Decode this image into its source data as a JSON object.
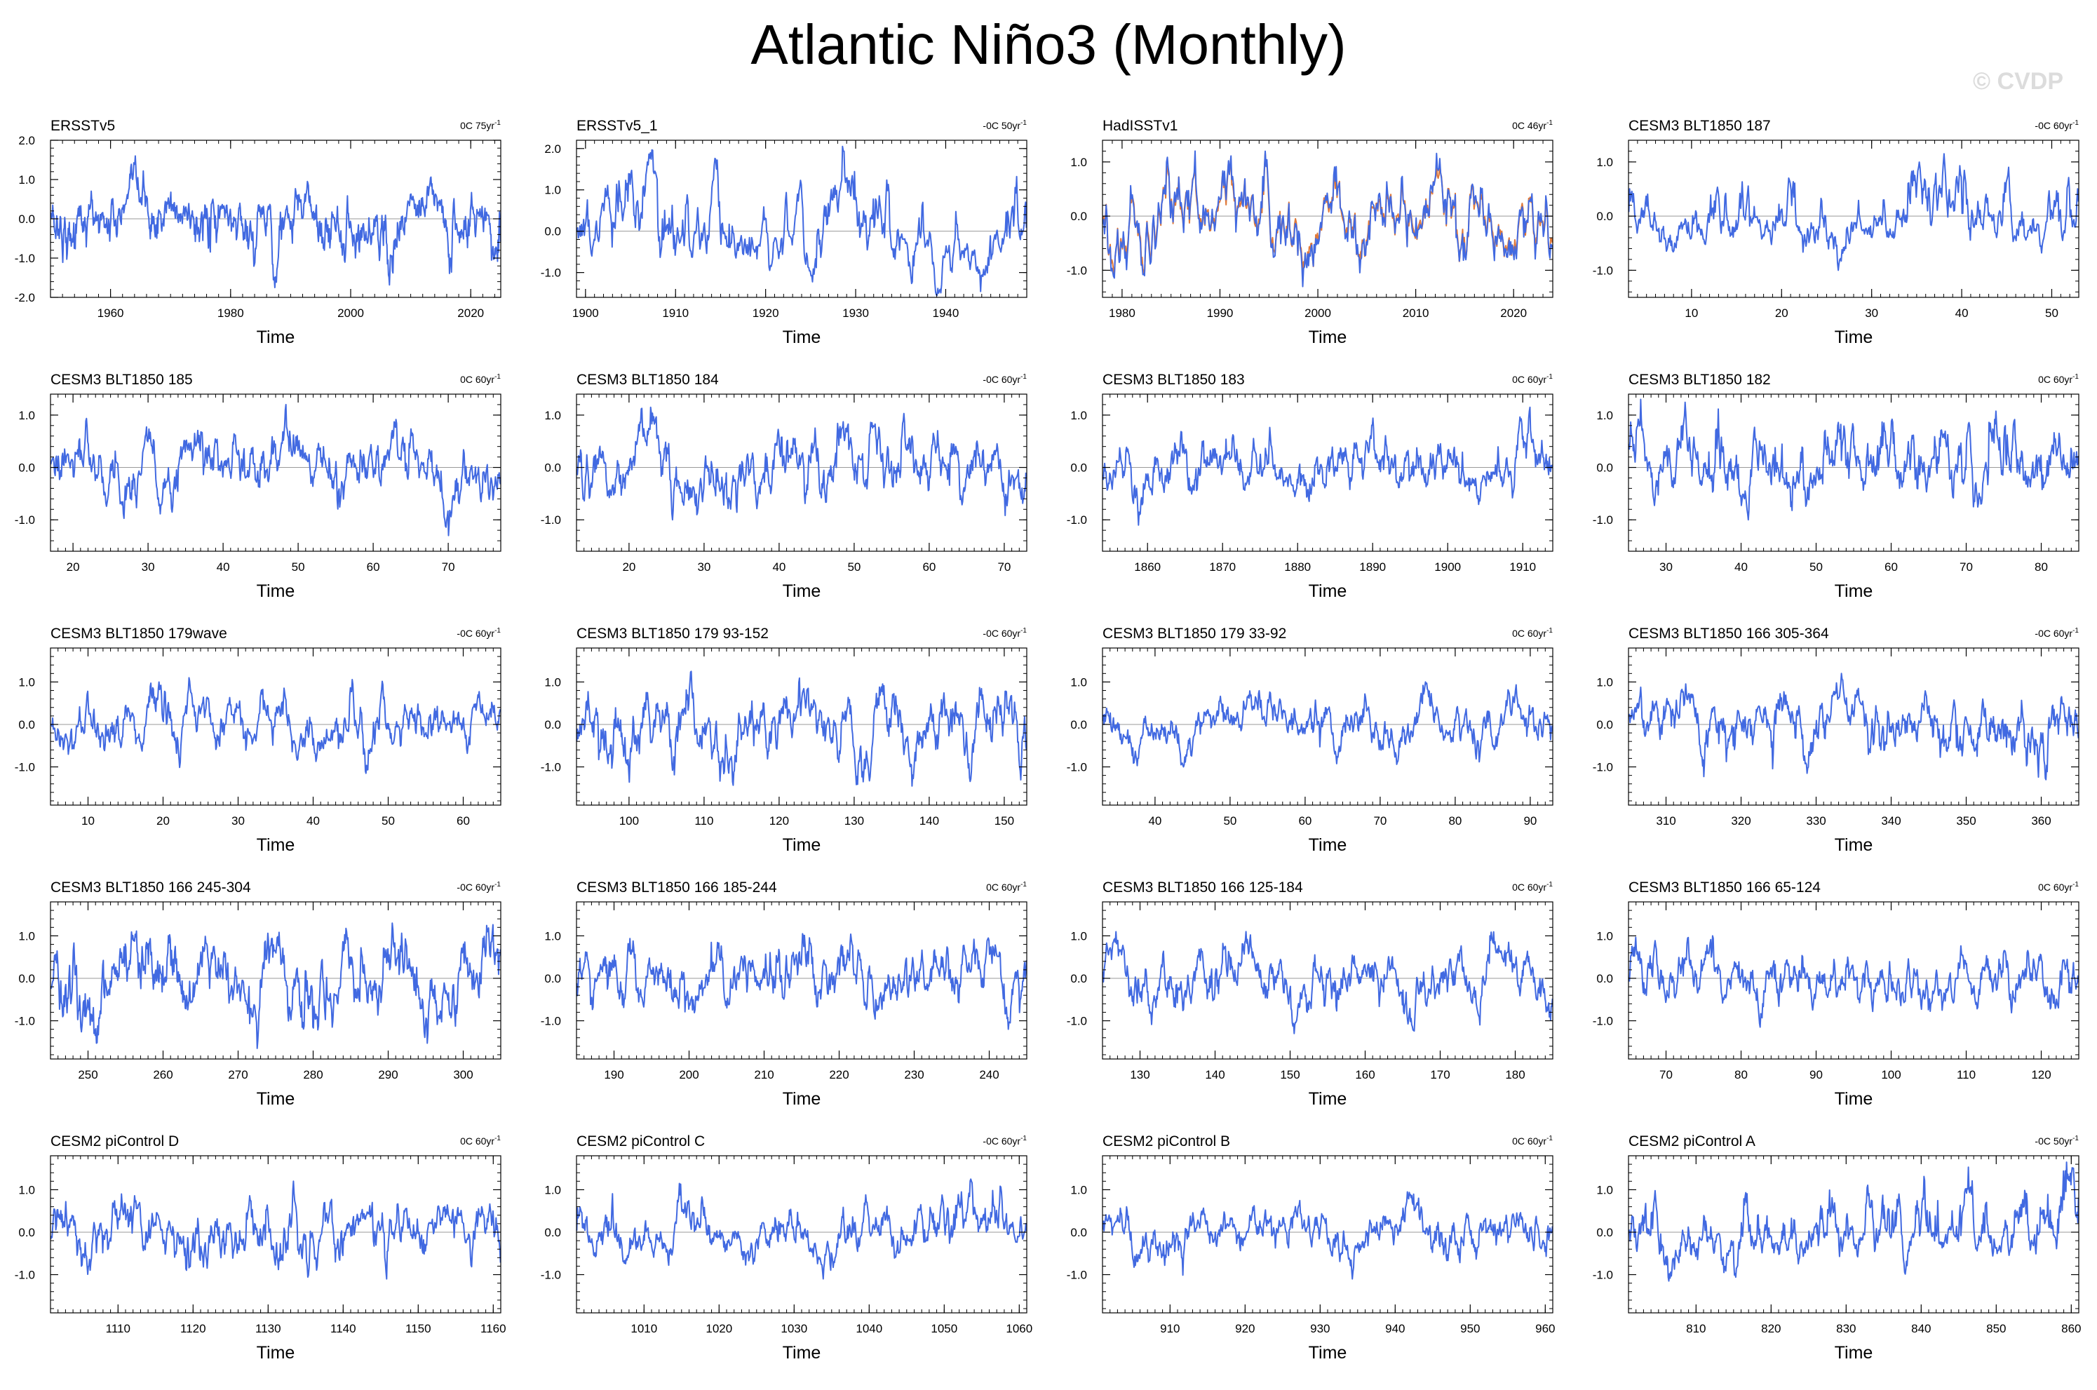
{
  "title": "Atlantic Niño3 (Monthly)",
  "watermark": "© CVDP",
  "colors": {
    "series": "#4169e1",
    "obs_series2": "#e07a3a",
    "frame": "#000000",
    "zero_line": "#999999"
  },
  "chart_data": [
    {
      "type": "line",
      "title": "ERSSTv5",
      "note": "0C 75yr",
      "note_sup": "-1",
      "xlabel": "Time",
      "xlim": [
        1950,
        2025
      ],
      "xticks": [
        "1960",
        "1980",
        "2000",
        "2020"
      ],
      "ylim": [
        -2.0,
        2.0
      ],
      "yticks": [
        "2.0",
        "1.0",
        "0.0",
        "-1.0",
        "-2.0"
      ],
      "amplitude": 0.5,
      "peak": 1.6,
      "trough": -1.75
    },
    {
      "type": "line",
      "title": "ERSSTv5_1",
      "note": "-0C 50yr",
      "note_sup": "-1",
      "xlabel": "Time",
      "xlim": [
        1899,
        1949
      ],
      "xticks": [
        "1900",
        "1910",
        "1920",
        "1930",
        "1940"
      ],
      "ylim": [
        -1.6,
        2.2
      ],
      "yticks": [
        "2.0",
        "1.0",
        "0.0",
        "-1.0"
      ],
      "amplitude": 0.45,
      "peak": 2.05,
      "trough": -1.55
    },
    {
      "type": "line",
      "title": "HadISSTv1",
      "note": "0C 46yr",
      "note_sup": "-1",
      "xlabel": "Time",
      "xlim": [
        1978,
        2024
      ],
      "xticks": [
        "1980",
        "1990",
        "2000",
        "2010",
        "2020"
      ],
      "ylim": [
        -1.5,
        1.4
      ],
      "yticks": [
        "1.0",
        "0.0",
        "-1.0"
      ],
      "amplitude": 0.45,
      "peak": 1.2,
      "trough": -1.3,
      "second_series": true
    },
    {
      "type": "line",
      "title": "CESM3 BLT1850 187",
      "note": "-0C 60yr",
      "note_sup": "-1",
      "xlabel": "Time",
      "xlim": [
        3,
        53
      ],
      "xticks": [
        "10",
        "20",
        "30",
        "40",
        "50"
      ],
      "ylim": [
        -1.5,
        1.4
      ],
      "yticks": [
        "1.0",
        "0.0",
        "-1.0"
      ],
      "amplitude": 0.4,
      "peak": 1.15,
      "trough": -1.0
    },
    {
      "type": "line",
      "title": "CESM3 BLT1850 185",
      "note": "0C 60yr",
      "note_sup": "-1",
      "xlabel": "Time",
      "xlim": [
        17,
        77
      ],
      "xticks": [
        "20",
        "30",
        "40",
        "50",
        "60",
        "70"
      ],
      "ylim": [
        -1.6,
        1.4
      ],
      "yticks": [
        "1.0",
        "0.0",
        "-1.0"
      ],
      "amplitude": 0.4,
      "peak": 1.2,
      "trough": -1.3
    },
    {
      "type": "line",
      "title": "CESM3 BLT1850 184",
      "note": "-0C 60yr",
      "note_sup": "-1",
      "xlabel": "Time",
      "xlim": [
        13,
        73
      ],
      "xticks": [
        "20",
        "30",
        "40",
        "50",
        "60",
        "70"
      ],
      "ylim": [
        -1.6,
        1.4
      ],
      "yticks": [
        "1.0",
        "0.0",
        "-1.0"
      ],
      "amplitude": 0.4,
      "peak": 1.15,
      "trough": -1.0
    },
    {
      "type": "line",
      "title": "CESM3 BLT1850 183",
      "note": "0C 60yr",
      "note_sup": "-1",
      "xlabel": "Time",
      "xlim": [
        1854,
        1914
      ],
      "xticks": [
        "1860",
        "1870",
        "1880",
        "1890",
        "1900",
        "1910"
      ],
      "ylim": [
        -1.6,
        1.4
      ],
      "yticks": [
        "1.0",
        "0.0",
        "-1.0"
      ],
      "amplitude": 0.4,
      "peak": 1.15,
      "trough": -1.1
    },
    {
      "type": "line",
      "title": "CESM3 BLT1850 182",
      "note": "0C 60yr",
      "note_sup": "-1",
      "xlabel": "Time",
      "xlim": [
        25,
        85
      ],
      "xticks": [
        "30",
        "40",
        "50",
        "60",
        "70",
        "80"
      ],
      "ylim": [
        -1.6,
        1.4
      ],
      "yticks": [
        "1.0",
        "0.0",
        "-1.0"
      ],
      "amplitude": 0.4,
      "peak": 1.3,
      "trough": -1.0
    },
    {
      "type": "line",
      "title": "CESM3 BLT1850 179wave",
      "note": "-0C 60yr",
      "note_sup": "-1",
      "xlabel": "Time",
      "xlim": [
        5,
        65
      ],
      "xticks": [
        "10",
        "20",
        "30",
        "40",
        "50",
        "60"
      ],
      "ylim": [
        -1.9,
        1.8
      ],
      "yticks": [
        "1.0",
        "0.0",
        "-1.0"
      ],
      "amplitude": 0.4,
      "peak": 1.1,
      "trough": -1.15
    },
    {
      "type": "line",
      "title": "CESM3 BLT1850 179 93-152",
      "note": "-0C 60yr",
      "note_sup": "-1",
      "xlabel": "Time",
      "xlim": [
        93,
        153
      ],
      "xticks": [
        "100",
        "110",
        "120",
        "130",
        "140",
        "150"
      ],
      "ylim": [
        -1.9,
        1.8
      ],
      "yticks": [
        "1.0",
        "0.0",
        "-1.0"
      ],
      "amplitude": 0.4,
      "peak": 1.25,
      "trough": -1.45
    },
    {
      "type": "line",
      "title": "CESM3 BLT1850 179 33-92",
      "note": "0C 60yr",
      "note_sup": "-1",
      "xlabel": "Time",
      "xlim": [
        33,
        93
      ],
      "xticks": [
        "40",
        "50",
        "60",
        "70",
        "80",
        "90"
      ],
      "ylim": [
        -1.9,
        1.8
      ],
      "yticks": [
        "1.0",
        "0.0",
        "-1.0"
      ],
      "amplitude": 0.4,
      "peak": 1.0,
      "trough": -1.0
    },
    {
      "type": "line",
      "title": "CESM3 BLT1850 166 305-364",
      "note": "-0C 60yr",
      "note_sup": "-1",
      "xlabel": "Time",
      "xlim": [
        305,
        365
      ],
      "xticks": [
        "310",
        "320",
        "330",
        "340",
        "350",
        "360"
      ],
      "ylim": [
        -1.9,
        1.8
      ],
      "yticks": [
        "1.0",
        "0.0",
        "-1.0"
      ],
      "amplitude": 0.4,
      "peak": 1.2,
      "trough": -1.3
    },
    {
      "type": "line",
      "title": "CESM3 BLT1850 166 245-304",
      "note": "-0C 60yr",
      "note_sup": "-1",
      "xlabel": "Time",
      "xlim": [
        245,
        305
      ],
      "xticks": [
        "250",
        "260",
        "270",
        "280",
        "290",
        "300"
      ],
      "ylim": [
        -1.9,
        1.8
      ],
      "yticks": [
        "1.0",
        "0.0",
        "-1.0"
      ],
      "amplitude": 0.4,
      "peak": 1.3,
      "trough": -1.65
    },
    {
      "type": "line",
      "title": "CESM3 BLT1850 166 185-244",
      "note": "0C 60yr",
      "note_sup": "-1",
      "xlabel": "Time",
      "xlim": [
        185,
        245
      ],
      "xticks": [
        "190",
        "200",
        "210",
        "220",
        "230",
        "240"
      ],
      "ylim": [
        -1.9,
        1.8
      ],
      "yticks": [
        "1.0",
        "0.0",
        "-1.0"
      ],
      "amplitude": 0.4,
      "peak": 1.05,
      "trough": -1.2
    },
    {
      "type": "line",
      "title": "CESM3 BLT1850 166 125-184",
      "note": "0C 60yr",
      "note_sup": "-1",
      "xlabel": "Time",
      "xlim": [
        125,
        185
      ],
      "xticks": [
        "130",
        "140",
        "150",
        "160",
        "170",
        "180"
      ],
      "ylim": [
        -1.9,
        1.8
      ],
      "yticks": [
        "1.0",
        "0.0",
        "-1.0"
      ],
      "amplitude": 0.4,
      "peak": 1.1,
      "trough": -1.3
    },
    {
      "type": "line",
      "title": "CESM3 BLT1850 166 65-124",
      "note": "0C 60yr",
      "note_sup": "-1",
      "xlabel": "Time",
      "xlim": [
        65,
        125
      ],
      "xticks": [
        "70",
        "80",
        "90",
        "100",
        "110",
        "120"
      ],
      "ylim": [
        -1.9,
        1.8
      ],
      "yticks": [
        "1.0",
        "0.0",
        "-1.0"
      ],
      "amplitude": 0.4,
      "peak": 1.0,
      "trough": -1.15
    },
    {
      "type": "line",
      "title": "CESM2 piControl D",
      "note": "0C 60yr",
      "note_sup": "-1",
      "xlabel": "Time",
      "xlim": [
        1101,
        1161
      ],
      "xticks": [
        "1110",
        "1120",
        "1130",
        "1140",
        "1150",
        "1160"
      ],
      "ylim": [
        -1.9,
        1.8
      ],
      "yticks": [
        "1.0",
        "0.0",
        "-1.0"
      ],
      "amplitude": 0.4,
      "peak": 1.2,
      "trough": -1.1
    },
    {
      "type": "line",
      "title": "CESM2 piControl C",
      "note": "-0C 60yr",
      "note_sup": "-1",
      "xlabel": "Time",
      "xlim": [
        1001,
        1061
      ],
      "xticks": [
        "1010",
        "1020",
        "1030",
        "1040",
        "1050",
        "1060"
      ],
      "ylim": [
        -1.9,
        1.8
      ],
      "yticks": [
        "1.0",
        "0.0",
        "-1.0"
      ],
      "amplitude": 0.4,
      "peak": 1.25,
      "trough": -1.1
    },
    {
      "type": "line",
      "title": "CESM2 piControl B",
      "note": "0C 60yr",
      "note_sup": "-1",
      "xlabel": "Time",
      "xlim": [
        901,
        961
      ],
      "xticks": [
        "910",
        "920",
        "930",
        "940",
        "950",
        "960"
      ],
      "ylim": [
        -1.9,
        1.8
      ],
      "yticks": [
        "1.0",
        "0.0",
        "-1.0"
      ],
      "amplitude": 0.4,
      "peak": 0.95,
      "trough": -1.1
    },
    {
      "type": "line",
      "title": "CESM2 piControl A",
      "note": "-0C 50yr",
      "note_sup": "-1",
      "xlabel": "Time",
      "xlim": [
        801,
        861
      ],
      "xticks": [
        "810",
        "820",
        "830",
        "840",
        "850",
        "860"
      ],
      "ylim": [
        -1.9,
        1.8
      ],
      "yticks": [
        "1.0",
        "0.0",
        "-1.0"
      ],
      "amplitude": 0.4,
      "peak": 1.65,
      "trough": -1.15
    }
  ]
}
